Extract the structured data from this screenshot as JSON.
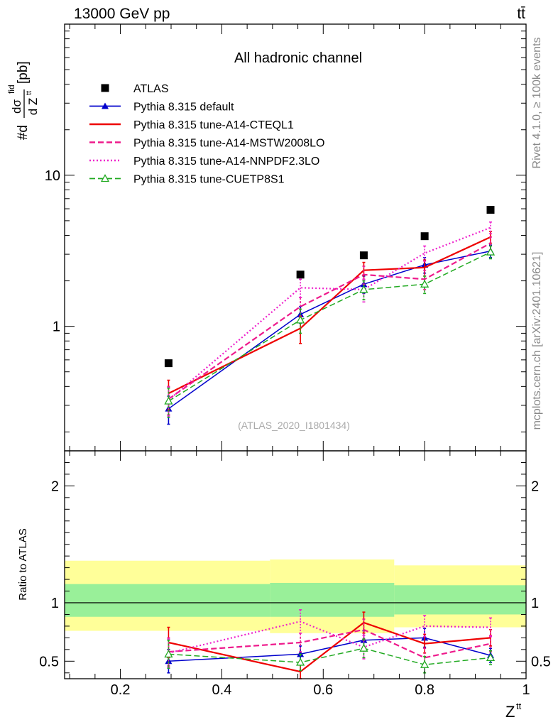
{
  "header": {
    "energy_label": "13000 GeV pp",
    "process_label": "tt̄"
  },
  "side_labels": {
    "rivet": "Rivet 4.1.0, ≥ 100k events",
    "mcplots": "mcplots.cern.ch [arXiv:2401.10621]"
  },
  "chart_data": [
    {
      "type": "line",
      "title": "All hadronic channel",
      "analysis_id": "(ATLAS_2020_I1801434)",
      "ylabel": "#dσ^fid/dZ^tt [pb]",
      "ylabel_parts": {
        "prefix": "#d",
        "sigma": "dσ",
        "sup": "fid",
        "denom": "d Z",
        "denom_sup": "tt",
        "unit": "[pb]"
      },
      "yscale": "log",
      "ylim": [
        0.15,
        100
      ],
      "xlim": [
        0.09,
        1.0
      ],
      "y_tick_labels": [
        {
          "value": 1,
          "label": "1"
        },
        {
          "value": 10,
          "label": "10"
        }
      ],
      "legend": "top-left",
      "x": [
        0.295,
        0.555,
        0.68,
        0.8,
        0.93
      ],
      "data": {
        "name": "ATLAS",
        "values": [
          0.57,
          2.2,
          2.95,
          3.95,
          5.9
        ],
        "bands": [
          [
            0.09,
            0.495
          ],
          [
            0.495,
            0.74
          ],
          [
            0.74,
            0.86
          ],
          [
            0.86,
            1.0
          ]
        ]
      },
      "series": [
        {
          "name": "Pythia 8.315 default",
          "color": "#0000cc",
          "dash": "solid",
          "marker": "triangle-filled",
          "values": [
            0.285,
            1.2,
            1.9,
            2.55,
            3.15
          ],
          "err": [
            0.06,
            0.15,
            0.25,
            0.3,
            0.3
          ]
        },
        {
          "name": "Pythia 8.315 tune-A14-CTEQL1",
          "color": "#ee0000",
          "dash": "solid",
          "marker": "none",
          "values": [
            0.36,
            0.97,
            2.35,
            2.45,
            3.9
          ],
          "err": [
            0.08,
            0.2,
            0.3,
            0.3,
            0.35
          ]
        },
        {
          "name": "Pythia 8.315 tune-A14-MSTW2008LO",
          "color": "#ee1a8c",
          "dash": "dashed",
          "marker": "none",
          "values": [
            0.33,
            1.35,
            2.2,
            2.05,
            3.55
          ],
          "err": [
            0.07,
            0.2,
            0.3,
            0.3,
            0.35
          ]
        },
        {
          "name": "Pythia 8.315 tune-A14-NNPDF2.3LO",
          "color": "#ee22cc",
          "dash": "dotted",
          "marker": "none",
          "values": [
            0.325,
            1.8,
            1.75,
            3.05,
            4.5
          ],
          "err": [
            0.07,
            0.25,
            0.3,
            0.35,
            0.4
          ]
        },
        {
          "name": "Pythia 8.315 tune-CUETP8S1",
          "color": "#22aa22",
          "dash": "dashed",
          "marker": "triangle-open",
          "values": [
            0.32,
            1.1,
            1.75,
            1.9,
            3.1
          ],
          "err": [
            0.07,
            0.2,
            0.25,
            0.25,
            0.3
          ]
        }
      ]
    },
    {
      "type": "line",
      "title": "Ratio to ATLAS",
      "ylabel": "Ratio to ATLAS",
      "xlabel": "Z^tt",
      "xlabel_parts": {
        "main": "Z",
        "sup": "tt"
      },
      "ylim": [
        0.35,
        2.3
      ],
      "xlim": [
        0.09,
        1.0
      ],
      "y_tick_labels": [
        {
          "value": 0.5,
          "label": "0.5"
        },
        {
          "value": 1,
          "label": "1"
        },
        {
          "value": 2,
          "label": "2"
        }
      ],
      "x_tick_labels": [
        {
          "value": 0.2,
          "label": "0.2"
        },
        {
          "value": 0.4,
          "label": "0.4"
        },
        {
          "value": 0.6,
          "label": "0.6"
        },
        {
          "value": 0.8,
          "label": "0.8"
        },
        {
          "value": 1.0,
          "label": "1"
        }
      ],
      "bands": [
        {
          "x0": 0.09,
          "x1": 0.495,
          "yellow": [
            0.76,
            1.36
          ],
          "green": [
            0.88,
            1.16
          ]
        },
        {
          "x0": 0.495,
          "x1": 0.74,
          "yellow": [
            0.74,
            1.37
          ],
          "green": [
            0.88,
            1.17
          ]
        },
        {
          "x0": 0.74,
          "x1": 0.86,
          "yellow": [
            0.79,
            1.32
          ],
          "green": [
            0.9,
            1.15
          ]
        },
        {
          "x0": 0.86,
          "x1": 1.0,
          "yellow": [
            0.79,
            1.32
          ],
          "green": [
            0.9,
            1.15
          ]
        }
      ],
      "x": [
        0.295,
        0.555,
        0.68,
        0.8,
        0.93
      ],
      "series": [
        {
          "name": "Pythia 8.315 default",
          "color": "#0000cc",
          "dash": "solid",
          "marker": "triangle-filled",
          "values": [
            0.5,
            0.56,
            0.68,
            0.7,
            0.55
          ],
          "err": [
            0.1,
            0.07,
            0.08,
            0.08,
            0.06
          ]
        },
        {
          "name": "Pythia 8.315 tune-A14-CTEQL1",
          "color": "#ee0000",
          "dash": "solid",
          "marker": "none",
          "values": [
            0.66,
            0.41,
            0.83,
            0.65,
            0.7
          ],
          "err": [
            0.13,
            0.06,
            0.09,
            0.08,
            0.07
          ]
        },
        {
          "name": "Pythia 8.315 tune-A14-MSTW2008LO",
          "color": "#ee1a8c",
          "dash": "dashed",
          "marker": "none",
          "values": [
            0.58,
            0.66,
            0.77,
            0.53,
            0.65
          ],
          "err": [
            0.12,
            0.08,
            0.09,
            0.08,
            0.07
          ]
        },
        {
          "name": "Pythia 8.315 tune-A14-NNPDF2.3LO",
          "color": "#ee22cc",
          "dash": "dotted",
          "marker": "none",
          "values": [
            0.57,
            0.84,
            0.62,
            0.8,
            0.79
          ],
          "err": [
            0.12,
            0.1,
            0.1,
            0.09,
            0.08
          ]
        },
        {
          "name": "Pythia 8.315 tune-CUETP8S1",
          "color": "#22aa22",
          "dash": "dashed",
          "marker": "triangle-open",
          "values": [
            0.56,
            0.49,
            0.61,
            0.47,
            0.53
          ],
          "err": [
            0.12,
            0.07,
            0.08,
            0.07,
            0.06
          ]
        }
      ]
    }
  ]
}
